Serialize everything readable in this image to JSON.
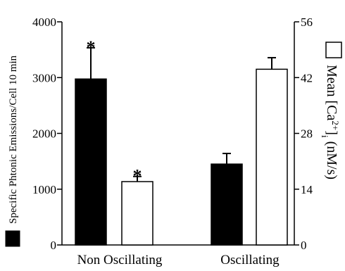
{
  "chart_data": {
    "type": "bar",
    "categories": [
      "Non Oscillating",
      "Oscillating"
    ],
    "series": [
      {
        "axis": "left",
        "color": "#000000",
        "values": [
          2975,
          1450
        ],
        "error_plus": [
          560,
          190
        ],
        "significance": [
          "*",
          ""
        ]
      },
      {
        "axis": "right",
        "color": "#ffffff",
        "values": [
          15.9,
          44.1
        ],
        "error_plus": [
          1.3,
          2.9
        ],
        "significance": [
          "*",
          ""
        ]
      }
    ],
    "ylabel": "Specific Phtonic Emissions/Cell 10 min",
    "ylim": [
      0,
      4000
    ],
    "yticks": [
      0,
      1000,
      2000,
      3000,
      4000
    ],
    "y2label": "Mean [Ca2+]i (nM/s)",
    "y2label_parts": {
      "pre": "Mean [Ca",
      "sup": "2+",
      "mid": "]",
      "sub": "i",
      "post": " (nM/s)"
    },
    "y2lim": [
      0,
      56
    ],
    "y2ticks": [
      0,
      14,
      28,
      42,
      56
    ],
    "grid": false,
    "legend": "none"
  }
}
